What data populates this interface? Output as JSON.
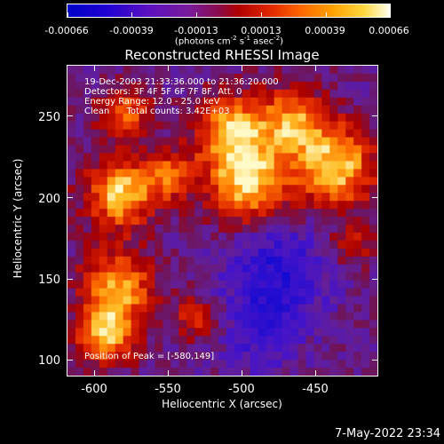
{
  "colorbar": {
    "tick_labels": [
      "-0.00066",
      "-0.00039",
      "-0.00013",
      "0.00013",
      "0.00039",
      "0.00066"
    ],
    "units_main": "(photons cm",
    "units_sup1": "-2",
    "units_mid1": " s",
    "units_sup2": "-1",
    "units_mid2": " asec",
    "units_sup3": "-2",
    "units_end": ")"
  },
  "plot": {
    "title": "Reconstructed RHESSI Image",
    "annotations": [
      "19-Dec-2003 21:33:36.000 to 21:36:20.000",
      "Detectors: 3F 4F 5F 6F 7F 8F, Att. 0",
      "Energy Range: 12.0 - 25.0 keV",
      "Clean      Total counts: 3.42E+03"
    ],
    "peak_label": "Position of Peak = [-580,149]",
    "xlabel": "Heliocentric X (arcsec)",
    "ylabel": "Heliocentric Y (arcsec)",
    "xticks": [
      "-600",
      "-550",
      "-500",
      "-450"
    ],
    "yticks": [
      "250",
      "200",
      "150",
      "100"
    ]
  },
  "footer": {
    "timestamp": "7-May-2022 23:34"
  }
}
